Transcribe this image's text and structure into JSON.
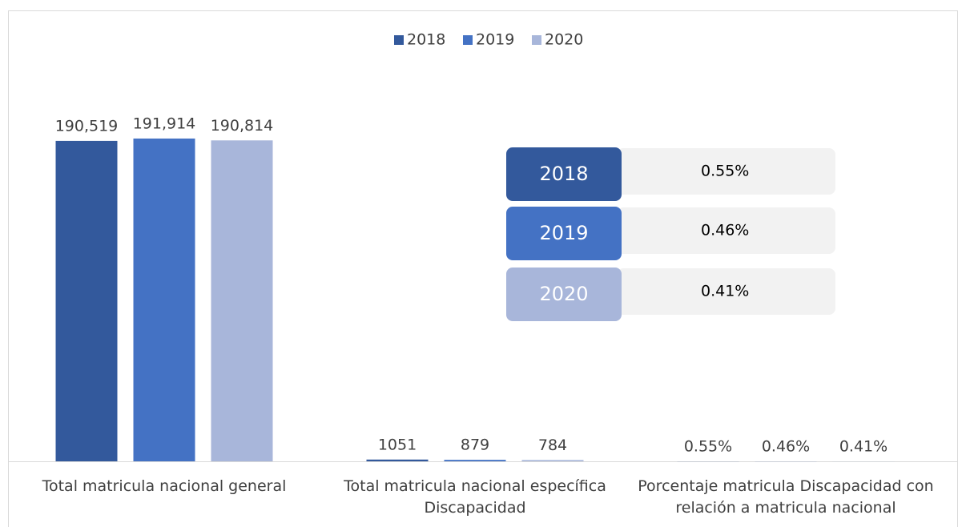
{
  "chart_data": {
    "type": "bar",
    "categories": [
      "Total matricula nacional general",
      "Total matricula nacional específica Discapacidad",
      "Porcentaje matricula Discapacidad con relación a matricula nacional"
    ],
    "series": [
      {
        "name": "2018",
        "color": "#33599c",
        "values": [
          190519,
          1051,
          0.55
        ],
        "value_labels": [
          "190,519",
          "1051",
          "0.55%"
        ]
      },
      {
        "name": "2019",
        "color": "#4472c4",
        "values": [
          191914,
          879,
          0.46
        ],
        "value_labels": [
          "191,914",
          "879",
          "0.46%"
        ]
      },
      {
        "name": "2020",
        "color": "#a8b6da",
        "values": [
          190814,
          784,
          0.41
        ],
        "value_labels": [
          "190,814",
          "784",
          "0.41%"
        ]
      }
    ],
    "ylim": [
      0,
      200000
    ],
    "legend": "top",
    "inset": {
      "rows": [
        {
          "year": "2018",
          "value": "0.55%"
        },
        {
          "year": "2019",
          "value": "0.46%"
        },
        {
          "year": "2020",
          "value": "0.41%"
        }
      ]
    }
  }
}
